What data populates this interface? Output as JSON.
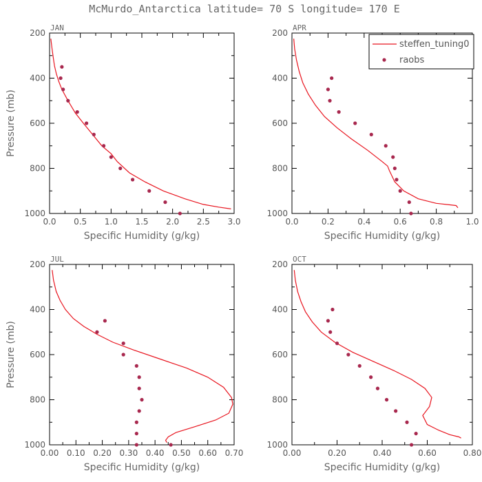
{
  "title": "McMurdo_Antarctica  latitude= 70 S longitude= 170 E",
  "legend": {
    "model": "steffen_tuning0",
    "obs": "raobs"
  },
  "colors": {
    "model": "#e8141e",
    "obs": "#a8284e",
    "axis": "#000000",
    "text": "#666666"
  },
  "chart_data": [
    {
      "type": "line",
      "title": "JAN",
      "xlabel": "Specific Humidity (g/kg)",
      "ylabel": "Pressure (mb)",
      "xlim": [
        0,
        3.0
      ],
      "ylim": [
        200,
        1000
      ],
      "y_inverted": true,
      "xticks": [
        "0.0",
        "0.5",
        "1.0",
        "1.5",
        "2.0",
        "2.5",
        "3.0"
      ],
      "yticks": [
        "200",
        "400",
        "600",
        "800",
        "1000"
      ],
      "model": {
        "x": [
          0.02,
          0.04,
          0.06,
          0.08,
          0.11,
          0.15,
          0.2,
          0.3,
          0.42,
          0.55,
          0.7,
          0.85,
          1.0,
          1.1,
          1.3,
          1.55,
          1.85,
          2.2,
          2.5,
          2.75,
          2.95
        ],
        "y": [
          225,
          270,
          310,
          345,
          380,
          415,
          450,
          500,
          555,
          600,
          650,
          700,
          735,
          770,
          820,
          860,
          900,
          935,
          960,
          972,
          980
        ]
      },
      "obs": {
        "x": [
          0.2,
          0.18,
          0.22,
          0.3,
          0.45,
          0.6,
          0.72,
          0.88,
          1.0,
          1.15,
          1.35,
          1.62,
          1.88,
          2.12
        ],
        "y": [
          350,
          400,
          450,
          500,
          550,
          600,
          650,
          700,
          750,
          800,
          850,
          900,
          950,
          1000
        ]
      }
    },
    {
      "type": "line",
      "title": "APR",
      "xlabel": "Specific Humidity (g/kg)",
      "ylabel": "",
      "xlim": [
        0,
        1.0
      ],
      "ylim": [
        200,
        1000
      ],
      "y_inverted": true,
      "xticks": [
        "0.0",
        "0.2",
        "0.4",
        "0.6",
        "0.8",
        "1.0"
      ],
      "yticks": [
        "200",
        "400",
        "600",
        "800",
        "1000"
      ],
      "legend_position": "top-right",
      "model": {
        "x": [
          0.01,
          0.015,
          0.025,
          0.04,
          0.06,
          0.09,
          0.13,
          0.18,
          0.25,
          0.33,
          0.42,
          0.5,
          0.53,
          0.54,
          0.57,
          0.62,
          0.7,
          0.8,
          0.88,
          0.91,
          0.92
        ],
        "y": [
          225,
          270,
          320,
          370,
          420,
          470,
          520,
          570,
          620,
          670,
          720,
          770,
          790,
          810,
          860,
          900,
          935,
          955,
          962,
          965,
          975
        ]
      },
      "obs": {
        "x": [
          0.22,
          0.2,
          0.21,
          0.26,
          0.35,
          0.44,
          0.52,
          0.56,
          0.57,
          0.58,
          0.6,
          0.65,
          0.66
        ],
        "y": [
          400,
          450,
          500,
          550,
          600,
          650,
          700,
          750,
          800,
          850,
          900,
          950,
          1000
        ]
      }
    },
    {
      "type": "line",
      "title": "JUL",
      "xlabel": "Specific Humidity (g/kg)",
      "ylabel": "Pressure (mb)",
      "xlim": [
        0,
        0.7
      ],
      "ylim": [
        200,
        1000
      ],
      "y_inverted": true,
      "xticks": [
        "0.00",
        "0.10",
        "0.20",
        "0.30",
        "0.40",
        "0.50",
        "0.60",
        "0.70"
      ],
      "yticks": [
        "200",
        "400",
        "600",
        "800",
        "1000"
      ],
      "model": {
        "x": [
          0.01,
          0.015,
          0.025,
          0.04,
          0.06,
          0.09,
          0.13,
          0.18,
          0.24,
          0.32,
          0.42,
          0.52,
          0.6,
          0.66,
          0.69,
          0.695,
          0.68,
          0.63,
          0.55,
          0.48,
          0.45,
          0.44,
          0.445
        ],
        "y": [
          225,
          270,
          320,
          360,
          400,
          440,
          475,
          510,
          545,
          580,
          620,
          660,
          700,
          745,
          790,
          820,
          860,
          890,
          920,
          945,
          965,
          980,
          990
        ]
      },
      "obs": {
        "x": [
          0.21,
          0.18,
          0.28,
          0.28,
          0.33,
          0.34,
          0.34,
          0.35,
          0.34,
          0.33,
          0.33,
          0.33,
          0.46
        ],
        "y": [
          450,
          500,
          550,
          600,
          650,
          700,
          750,
          800,
          850,
          900,
          950,
          1000,
          1000
        ]
      }
    },
    {
      "type": "line",
      "title": "OCT",
      "xlabel": "Specific Humidity (g/kg)",
      "ylabel": "",
      "xlim": [
        0,
        0.8
      ],
      "ylim": [
        200,
        1000
      ],
      "y_inverted": true,
      "xticks": [
        "0.00",
        "0.20",
        "0.40",
        "0.60",
        "0.80"
      ],
      "yticks": [
        "200",
        "400",
        "600",
        "800",
        "1000"
      ],
      "model": {
        "x": [
          0.01,
          0.015,
          0.025,
          0.04,
          0.06,
          0.09,
          0.13,
          0.19,
          0.27,
          0.36,
          0.45,
          0.53,
          0.59,
          0.62,
          0.61,
          0.58,
          0.6,
          0.65,
          0.7,
          0.74,
          0.75
        ],
        "y": [
          225,
          270,
          320,
          365,
          410,
          455,
          500,
          545,
          590,
          630,
          670,
          710,
          750,
          790,
          830,
          870,
          910,
          935,
          955,
          965,
          970
        ]
      },
      "obs": {
        "x": [
          0.18,
          0.16,
          0.17,
          0.2,
          0.25,
          0.3,
          0.35,
          0.38,
          0.42,
          0.46,
          0.51,
          0.55,
          0.53
        ],
        "y": [
          400,
          450,
          500,
          550,
          600,
          650,
          700,
          750,
          800,
          850,
          900,
          950,
          1000
        ]
      }
    }
  ]
}
